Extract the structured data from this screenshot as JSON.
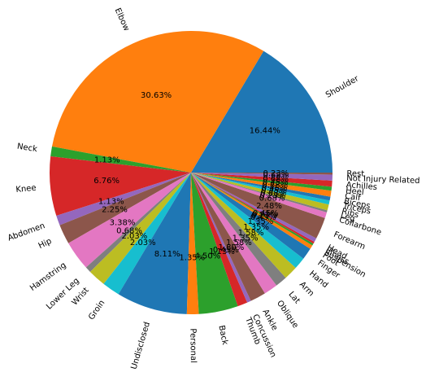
{
  "chart_data": {
    "type": "pie",
    "categories": [
      "Shoulder",
      "Elbow",
      "Neck",
      "Knee",
      "Abdomen",
      "Hip",
      "Hamstring",
      "Lower Leg",
      "Wrist",
      "Groin",
      "Undisclosed",
      "Personal",
      "Back",
      "Thumb",
      "Concussion",
      "Ankle",
      "Oblique",
      "Lat",
      "Arm",
      "Hand",
      "Finger",
      "Foot",
      "Suspension",
      "Illness",
      "Head",
      "Forearm",
      "Collarbone",
      "Leg",
      "Ribs",
      "Triceps",
      "Biceps",
      "Calf",
      "Heel",
      "Achilles",
      "Not Injury Related",
      "Rest"
    ],
    "values": [
      16.44,
      30.63,
      1.13,
      6.76,
      1.13,
      2.25,
      3.38,
      0.68,
      2.03,
      2.03,
      8.11,
      1.35,
      4.5,
      1.13,
      0.45,
      1.8,
      1.58,
      1.35,
      1.58,
      1.35,
      1.35,
      0.45,
      0.23,
      0.23,
      0.45,
      2.48,
      0.68,
      0.23,
      0.68,
      0.45,
      0.45,
      0.68,
      0.45,
      0.68,
      0.68,
      0.23
    ],
    "value_labels": [
      "16.44%",
      "30.63%",
      "1.13%",
      "6.76%",
      "1.13%",
      "2.25%",
      "3.38%",
      "0.68%",
      "2.03%",
      "2.03%",
      "8.11%",
      "1.35%",
      "4.50%",
      "1.13%",
      "0.45%",
      "1.80%",
      "1.58%",
      "1.35%",
      "1.58%",
      "1.35%",
      "1.35%",
      "0.45%",
      "0.23%",
      "0.23%",
      "0.45%",
      "2.48%",
      "0.68%",
      "0.23%",
      "0.68%",
      "0.45%",
      "0.45%",
      "0.68%",
      "0.45%",
      "0.68%",
      "0.68%",
      "0.23%"
    ],
    "colors": [
      "#1f77b4",
      "#ff7f0e",
      "#2ca02c",
      "#d62728",
      "#9467bd",
      "#8c564b",
      "#e377c2",
      "#7f7f7f",
      "#bcbd22",
      "#17becf"
    ]
  }
}
